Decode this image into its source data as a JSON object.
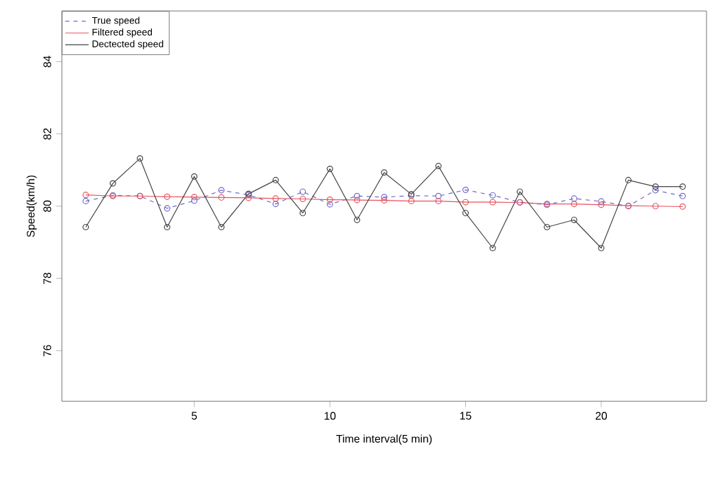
{
  "chart_data": {
    "type": "line",
    "xlabel": "Time interval(5 min)",
    "ylabel": "Speed(km/h)",
    "x": [
      1,
      2,
      3,
      4,
      5,
      6,
      7,
      8,
      9,
      10,
      11,
      12,
      13,
      14,
      15,
      16,
      17,
      18,
      19,
      20,
      21,
      22,
      23
    ],
    "xlim": [
      0.12,
      23.88
    ],
    "xticks": [
      5,
      10,
      15,
      20
    ],
    "ylim": [
      74.6,
      85.4
    ],
    "yticks": [
      76,
      78,
      80,
      82,
      84
    ],
    "legend": "top left",
    "marker": "circle",
    "grid": false,
    "series": [
      {
        "name": "True speed",
        "color": "#6a6acd",
        "line_style": "dashed",
        "values": [
          80.14,
          80.3,
          80.28,
          79.94,
          80.15,
          80.44,
          80.31,
          80.06,
          80.4,
          80.05,
          80.28,
          80.25,
          80.29,
          80.28,
          80.45,
          80.3,
          80.11,
          80.04,
          80.21,
          80.13,
          80.0,
          80.44,
          80.28
        ]
      },
      {
        "name": "Filtered speed",
        "color": "#e8505a",
        "line_style": "solid",
        "values": [
          80.31,
          80.28,
          80.28,
          80.26,
          80.25,
          80.24,
          80.23,
          80.21,
          80.2,
          80.18,
          80.17,
          80.16,
          80.14,
          80.14,
          80.11,
          80.11,
          80.1,
          80.06,
          80.06,
          80.04,
          80.01,
          80.0,
          79.99
        ]
      },
      {
        "name": "Dectected speed",
        "color": "#404040",
        "line_style": "solid",
        "values": [
          79.42,
          80.63,
          81.32,
          79.42,
          80.82,
          79.42,
          80.34,
          80.72,
          79.81,
          81.03,
          79.62,
          80.93,
          80.33,
          81.11,
          79.81,
          78.84,
          80.4,
          79.42,
          79.62,
          78.84,
          80.72,
          80.54,
          80.54
        ]
      }
    ]
  }
}
